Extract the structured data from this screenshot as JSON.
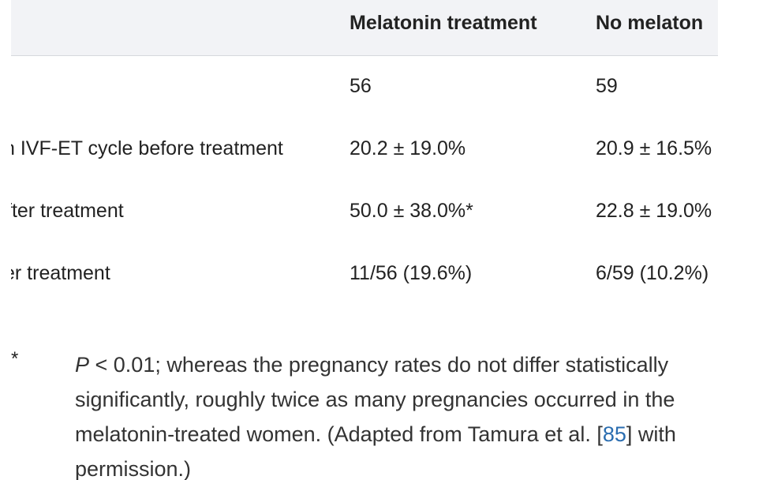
{
  "table": {
    "headers": [
      "",
      "Melatonin treatment",
      "No melaton"
    ],
    "rows": [
      [
        "",
        "56",
        "59"
      ],
      [
        "n IVF-ET cycle before treatment",
        "20.2 ± 19.0%",
        "20.9 ± 16.5%"
      ],
      [
        "fter treatment",
        "50.0 ± 38.0%*",
        "22.8 ± 19.0%"
      ],
      [
        "er treatment",
        "11/56 (19.6%)",
        "6/59 (10.2%)"
      ]
    ]
  },
  "footnote": {
    "marker": "*",
    "p_symbol": "P",
    "text_before_ref": " < 0.01; whereas the pregnancy rates do not differ statistically significantly, roughly twice as many pregnancies occurred in the melatonin-treated women. (Adapted from Tamura et al. [",
    "ref": "85",
    "text_after_ref": "] with permission.)"
  }
}
